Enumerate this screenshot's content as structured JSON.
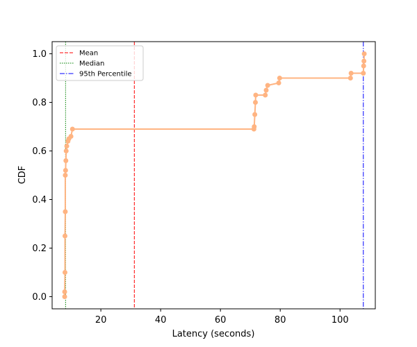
{
  "chart_data": {
    "type": "line",
    "title": "",
    "xlabel": "Latency (seconds)",
    "ylabel": "CDF",
    "xlim": [
      3.7,
      111.8
    ],
    "ylim": [
      -0.05,
      1.05
    ],
    "xticks": [
      20,
      40,
      60,
      80,
      100
    ],
    "yticks": [
      0.0,
      0.2,
      0.4,
      0.6,
      0.8,
      1.0
    ],
    "grid": false,
    "legend": {
      "position": "top-left"
    },
    "colors": {
      "cdf": "#FFB482",
      "mean": "#ff0000",
      "median": "#008000",
      "p95": "#0000ff"
    },
    "series": [
      {
        "values": [
          [
            7.9,
            0.0
          ],
          [
            7.9,
            0.02
          ],
          [
            8.0,
            0.1
          ],
          [
            8.0,
            0.25
          ],
          [
            8.1,
            0.35
          ],
          [
            8.1,
            0.5
          ],
          [
            8.2,
            0.52
          ],
          [
            8.3,
            0.56
          ],
          [
            8.4,
            0.6
          ],
          [
            8.6,
            0.62
          ],
          [
            9.0,
            0.64
          ],
          [
            9.3,
            0.65
          ],
          [
            10.0,
            0.66
          ],
          [
            10.5,
            0.69
          ],
          [
            71.2,
            0.69
          ],
          [
            71.3,
            0.7
          ],
          [
            71.5,
            0.75
          ],
          [
            71.7,
            0.8
          ],
          [
            71.8,
            0.83
          ],
          [
            75.0,
            0.83
          ],
          [
            75.3,
            0.85
          ],
          [
            75.8,
            0.87
          ],
          [
            79.5,
            0.88
          ],
          [
            79.8,
            0.9
          ],
          [
            103.5,
            0.9
          ],
          [
            103.7,
            0.92
          ],
          [
            107.8,
            0.92
          ],
          [
            107.9,
            0.95
          ],
          [
            108.0,
            0.97
          ],
          [
            108.1,
            1.0
          ]
        ]
      }
    ],
    "markers": [
      {
        "label": "Mean",
        "x": 31.2,
        "style": "dashed"
      },
      {
        "label": "Median",
        "x": 8.2,
        "style": "dotted"
      },
      {
        "label": "95th Percentile",
        "x": 107.8,
        "style": "dashdot"
      }
    ]
  }
}
